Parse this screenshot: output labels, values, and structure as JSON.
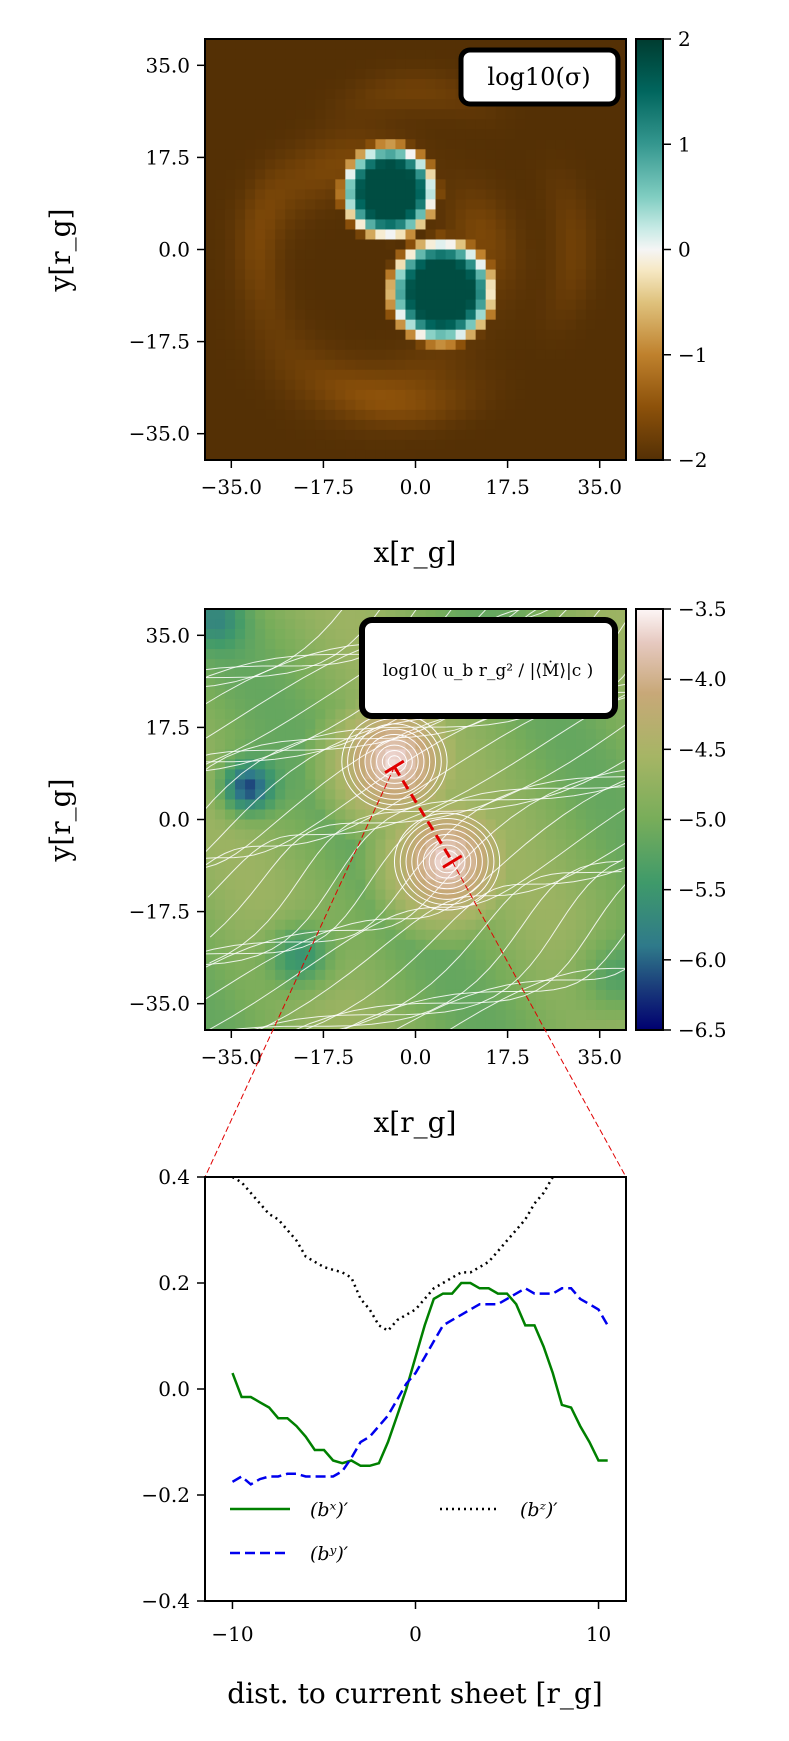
{
  "chart_data": [
    {
      "type": "heatmap",
      "title": "log10(σ)",
      "xlabel": "x[r_g]",
      "ylabel": "y[r_g]",
      "xlim": [
        -40,
        40
      ],
      "ylim": [
        -40,
        40
      ],
      "xticks": [
        -35.0,
        -17.5,
        0.0,
        17.5,
        35.0
      ],
      "yticks": [
        -35.0,
        -17.5,
        0.0,
        17.5,
        35.0
      ],
      "xtick_labels": [
        "−35.0",
        "−17.5",
        "0.0",
        "17.5",
        "35.0"
      ],
      "ytick_labels": [
        "−35.0",
        "−17.5",
        "0.0",
        "17.5",
        "35.0"
      ],
      "colorbar": {
        "range": [
          -2,
          2
        ],
        "ticks": [
          2,
          1,
          0,
          -1,
          -2
        ],
        "tick_labels": [
          "2",
          "1",
          "0",
          "−1",
          "−2"
        ],
        "colormap": "BrBG"
      },
      "blobs": [
        {
          "center": [
            -5,
            11
          ],
          "radius": 9,
          "peak": 1.8
        },
        {
          "center": [
            5,
            -8
          ],
          "radius": 10,
          "peak": 1.8
        }
      ]
    },
    {
      "type": "heatmap",
      "title": "log10( u_b r_g² / |⟨Ṁ⟩|c )",
      "xlabel": "x[r_g]",
      "ylabel": "y[r_g]",
      "xlim": [
        -40,
        40
      ],
      "ylim": [
        -40,
        40
      ],
      "xticks": [
        -35.0,
        -17.5,
        0.0,
        17.5,
        35.0
      ],
      "yticks": [
        -35.0,
        -17.5,
        0.0,
        17.5,
        35.0
      ],
      "xtick_labels": [
        "−35.0",
        "−17.5",
        "0.0",
        "17.5",
        "35.0"
      ],
      "ytick_labels": [
        "−35.0",
        "−17.5",
        "0.0",
        "17.5",
        "35.0"
      ],
      "colorbar": {
        "range": [
          -6.5,
          -3.5
        ],
        "ticks": [
          -3.5,
          -4.0,
          -4.5,
          -5.0,
          -5.5,
          -6.0,
          -6.5
        ],
        "tick_labels": [
          "−3.5",
          "−4.0",
          "−4.5",
          "−5.0",
          "−5.5",
          "−6.0",
          "−6.5"
        ],
        "colormap": "gist_earth"
      },
      "overlay": "magnetic field streamlines (white)",
      "cut_line": {
        "from": [
          -4,
          10
        ],
        "to": [
          7,
          -8
        ],
        "color": "#e00000",
        "style": "dashed"
      }
    },
    {
      "type": "line",
      "xlabel": "dist. to current sheet [r_g]",
      "ylabel": "",
      "xlim": [
        -11.5,
        11.5
      ],
      "ylim": [
        -0.4,
        0.4
      ],
      "xticks": [
        -10,
        0,
        10
      ],
      "xtick_labels": [
        "−10",
        "0",
        "10"
      ],
      "yticks": [
        0.4,
        0.2,
        0.0,
        -0.2,
        -0.4
      ],
      "ytick_labels": [
        "0.4",
        "0.2",
        "0.0",
        "−0.2",
        "−0.4"
      ],
      "series": [
        {
          "name": "(b^x)′",
          "legend_label": "(bˣ)′",
          "color": "#008000",
          "style": "solid",
          "x": [
            -10.0,
            -9.5,
            -9.0,
            -8.5,
            -8.0,
            -7.5,
            -7.0,
            -6.5,
            -6.0,
            -5.5,
            -5.0,
            -4.5,
            -4.0,
            -3.5,
            -3.0,
            -2.5,
            -2.0,
            -1.5,
            -1.0,
            -0.5,
            0.0,
            0.5,
            1.0,
            1.5,
            2.0,
            2.5,
            3.0,
            3.5,
            4.0,
            4.5,
            5.0,
            5.5,
            6.0,
            6.5,
            7.0,
            7.5,
            8.0,
            8.5,
            9.0,
            9.5,
            10.0,
            10.5
          ],
          "values": [
            0.03,
            -0.015,
            -0.015,
            -0.025,
            -0.035,
            -0.055,
            -0.055,
            -0.07,
            -0.09,
            -0.115,
            -0.115,
            -0.135,
            -0.14,
            -0.135,
            -0.145,
            -0.145,
            -0.14,
            -0.1,
            -0.05,
            0.0,
            0.06,
            0.12,
            0.17,
            0.18,
            0.18,
            0.2,
            0.2,
            0.19,
            0.19,
            0.18,
            0.18,
            0.16,
            0.12,
            0.12,
            0.08,
            0.03,
            -0.03,
            -0.035,
            -0.07,
            -0.1,
            -0.135,
            -0.135
          ]
        },
        {
          "name": "(b^y)′",
          "legend_label": "(bʸ)′",
          "color": "#0000ee",
          "style": "dashed",
          "x": [
            -10.0,
            -9.5,
            -9.0,
            -8.5,
            -8.0,
            -7.5,
            -7.0,
            -6.5,
            -6.0,
            -5.5,
            -5.0,
            -4.5,
            -4.0,
            -3.5,
            -3.0,
            -2.5,
            -2.0,
            -1.5,
            -1.0,
            -0.5,
            0.0,
            0.5,
            1.0,
            1.5,
            2.0,
            2.5,
            3.0,
            3.5,
            4.0,
            4.5,
            5.0,
            5.5,
            6.0,
            6.5,
            7.0,
            7.5,
            8.0,
            8.5,
            9.0,
            9.5,
            10.0,
            10.5
          ],
          "values": [
            -0.175,
            -0.165,
            -0.18,
            -0.17,
            -0.165,
            -0.165,
            -0.16,
            -0.16,
            -0.165,
            -0.165,
            -0.165,
            -0.165,
            -0.155,
            -0.13,
            -0.1,
            -0.09,
            -0.07,
            -0.05,
            -0.02,
            0.01,
            0.03,
            0.06,
            0.09,
            0.12,
            0.13,
            0.14,
            0.15,
            0.16,
            0.16,
            0.16,
            0.17,
            0.18,
            0.19,
            0.18,
            0.18,
            0.18,
            0.19,
            0.19,
            0.17,
            0.16,
            0.15,
            0.12
          ]
        },
        {
          "name": "(b^z)′",
          "legend_label": "(bᶻ)′",
          "color": "#000000",
          "style": "dotted",
          "x": [
            -10.0,
            -9.5,
            -9.0,
            -8.5,
            -8.0,
            -7.5,
            -7.0,
            -6.5,
            -6.0,
            -5.5,
            -5.0,
            -4.5,
            -4.0,
            -3.5,
            -3.0,
            -2.5,
            -2.0,
            -1.5,
            -1.0,
            -0.5,
            0.0,
            0.5,
            1.0,
            1.5,
            2.0,
            2.5,
            3.0,
            3.5,
            4.0,
            4.5,
            5.0,
            5.5,
            6.0,
            6.5,
            7.0,
            7.5
          ],
          "values": [
            0.4,
            0.39,
            0.37,
            0.35,
            0.33,
            0.32,
            0.3,
            0.28,
            0.25,
            0.24,
            0.23,
            0.225,
            0.22,
            0.21,
            0.17,
            0.15,
            0.12,
            0.11,
            0.13,
            0.14,
            0.15,
            0.17,
            0.19,
            0.2,
            0.21,
            0.22,
            0.22,
            0.23,
            0.24,
            0.26,
            0.28,
            0.3,
            0.32,
            0.35,
            0.37,
            0.4
          ]
        }
      ],
      "legend_placement": "lower-left"
    }
  ]
}
